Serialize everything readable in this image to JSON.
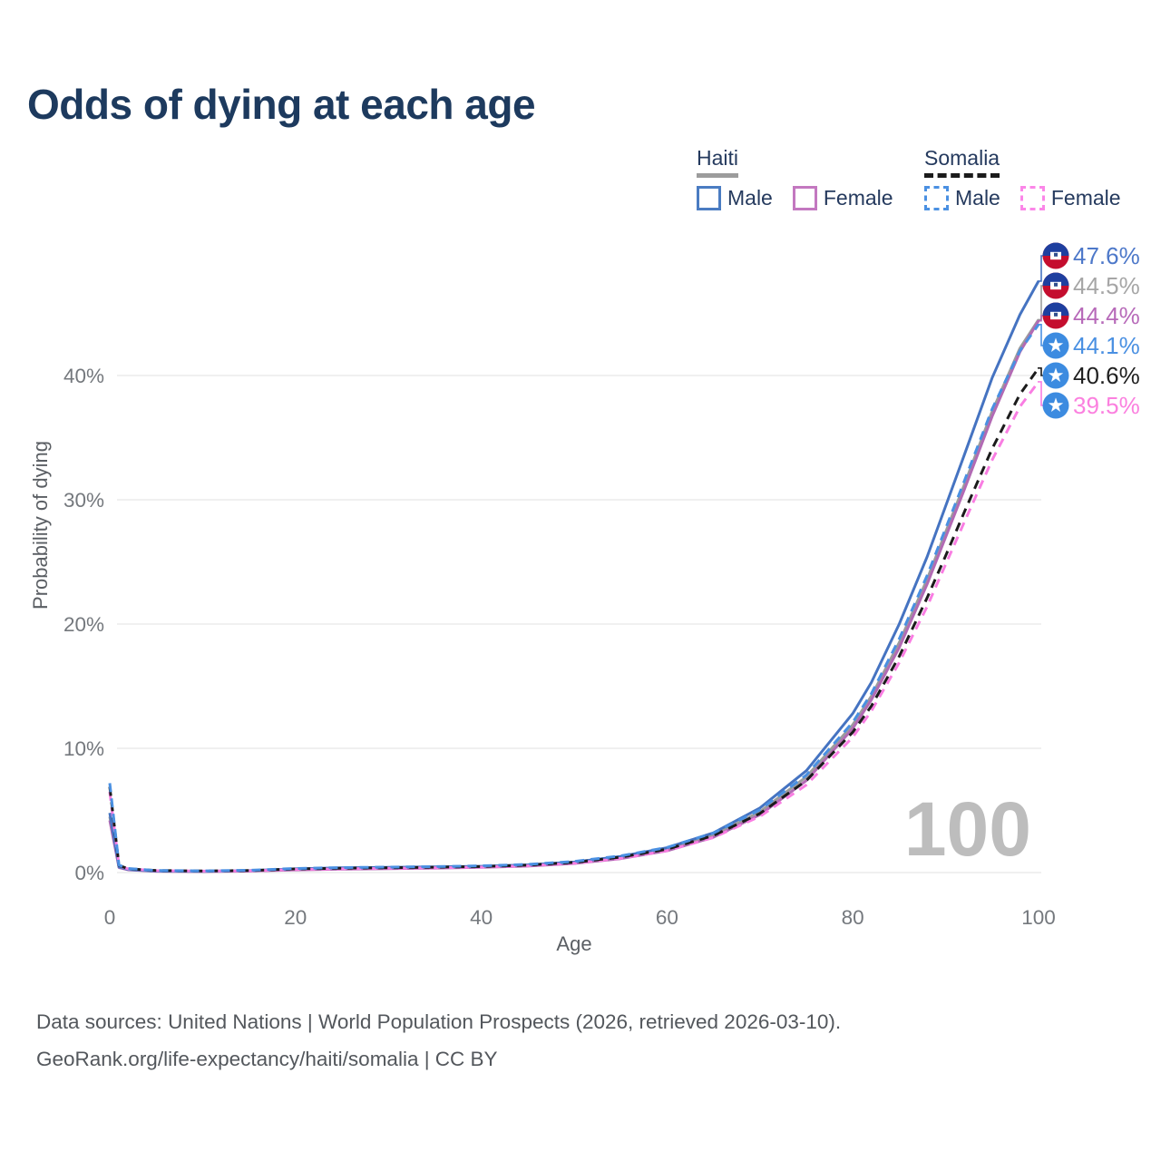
{
  "title": "Odds of dying at each age",
  "legend": {
    "groups": [
      {
        "country": "Haiti",
        "line_style": "solid",
        "underline_color": "#9c9c9c",
        "items": [
          {
            "label": "Male",
            "color": "#4a7cc2",
            "style": "solid"
          },
          {
            "label": "Female",
            "color": "#c378c0",
            "style": "solid"
          }
        ]
      },
      {
        "country": "Somalia",
        "line_style": "dashed",
        "underline_color": "#1b1b1b",
        "items": [
          {
            "label": "Male",
            "color": "#4a90e2",
            "style": "dashed"
          },
          {
            "label": "Female",
            "color": "#fb86e8",
            "style": "dashed"
          }
        ]
      }
    ]
  },
  "chart_data": {
    "type": "line",
    "title": "Odds of dying at each age",
    "xlabel": "Age",
    "ylabel": "Probability of dying",
    "xlim": [
      0,
      100
    ],
    "ylim": [
      0,
      48
    ],
    "x_ticks": [
      0,
      20,
      40,
      60,
      80,
      100
    ],
    "y_ticks": [
      "0%",
      "10%",
      "20%",
      "30%",
      "40%"
    ],
    "y_tick_values": [
      0,
      10,
      20,
      30,
      40
    ],
    "grid": "horizontal",
    "legend_position": "top-right",
    "watermark": "100",
    "x": [
      0,
      1,
      2,
      5,
      10,
      15,
      20,
      25,
      30,
      35,
      40,
      45,
      50,
      55,
      60,
      65,
      70,
      75,
      80,
      82,
      85,
      88,
      90,
      92,
      95,
      98,
      100
    ],
    "series": [
      {
        "name": "Haiti",
        "country": "Haiti",
        "group": "All",
        "color": "#9c9c9c",
        "label_color": "#a6a6a6",
        "dash": "solid",
        "flag": "haiti",
        "end_value": 44.5,
        "end_label": "44.5%",
        "values": [
          4.5,
          0.42,
          0.24,
          0.11,
          0.09,
          0.13,
          0.26,
          0.33,
          0.37,
          0.41,
          0.46,
          0.57,
          0.79,
          1.2,
          1.86,
          3.0,
          4.9,
          7.7,
          11.9,
          14.2,
          18.5,
          23.6,
          27.4,
          31.2,
          37.1,
          42.2,
          44.5
        ]
      },
      {
        "name": "Haiti Female",
        "country": "Haiti",
        "group": "Female",
        "color": "#b26ab4",
        "label_color": "#b76ab9",
        "dash": "solid",
        "flag": "haiti",
        "end_value": 44.4,
        "end_label": "44.4%",
        "values": [
          4.2,
          0.4,
          0.22,
          0.1,
          0.08,
          0.12,
          0.21,
          0.27,
          0.31,
          0.36,
          0.42,
          0.52,
          0.73,
          1.12,
          1.75,
          2.85,
          4.65,
          7.4,
          11.6,
          13.9,
          18.1,
          23.2,
          27.0,
          30.8,
          36.7,
          41.9,
          44.4
        ]
      },
      {
        "name": "Haiti Male",
        "country": "Haiti",
        "group": "Male",
        "color": "#4573c1",
        "label_color": "#4d78c9",
        "dash": "solid",
        "flag": "haiti",
        "end_value": 47.6,
        "end_label": "47.6%",
        "values": [
          4.8,
          0.45,
          0.25,
          0.12,
          0.1,
          0.15,
          0.3,
          0.38,
          0.42,
          0.45,
          0.5,
          0.62,
          0.85,
          1.3,
          2.0,
          3.2,
          5.2,
          8.2,
          12.8,
          15.3,
          20.0,
          25.4,
          29.5,
          33.6,
          39.8,
          44.9,
          47.6
        ]
      },
      {
        "name": "Somalia Female",
        "country": "Somalia",
        "group": "Female",
        "color": "#f97de2",
        "label_color": "#fb80df",
        "dash": "dashed",
        "flag": "somalia",
        "end_value": 39.5,
        "end_label": "39.5%",
        "values": [
          6.5,
          0.54,
          0.29,
          0.15,
          0.12,
          0.14,
          0.25,
          0.3,
          0.34,
          0.38,
          0.44,
          0.55,
          0.75,
          1.14,
          1.76,
          2.82,
          4.52,
          7.05,
          10.9,
          13.0,
          16.9,
          21.4,
          24.8,
          28.2,
          33.2,
          37.5,
          39.5
        ]
      },
      {
        "name": "Somalia",
        "country": "Somalia",
        "group": "All",
        "color": "#1b1b1b",
        "label_color": "#1f1f1f",
        "dash": "dashed",
        "flag": "somalia",
        "end_value": 40.6,
        "end_label": "40.6%",
        "values": [
          6.9,
          0.57,
          0.31,
          0.16,
          0.13,
          0.16,
          0.29,
          0.35,
          0.39,
          0.43,
          0.49,
          0.6,
          0.82,
          1.24,
          1.88,
          2.98,
          4.75,
          7.4,
          11.3,
          13.4,
          17.4,
          22.1,
          25.5,
          29.0,
          34.1,
          38.5,
          40.6
        ]
      },
      {
        "name": "Somalia Male",
        "country": "Somalia",
        "group": "Male",
        "color": "#4a90e2",
        "label_color": "#4a90e2",
        "dash": "dashed",
        "flag": "somalia",
        "end_value": 44.1,
        "end_label": "44.1%",
        "values": [
          7.2,
          0.6,
          0.33,
          0.17,
          0.14,
          0.18,
          0.33,
          0.4,
          0.44,
          0.48,
          0.54,
          0.66,
          0.9,
          1.34,
          2.02,
          3.18,
          5.05,
          7.85,
          12.1,
          14.4,
          18.8,
          23.9,
          27.7,
          31.5,
          37.3,
          42.0,
          44.1
        ]
      }
    ]
  },
  "flag_colors": {
    "haiti_blue": "#1e3f9f",
    "haiti_red": "#c40d2e",
    "somalia_blue": "#3c8be0"
  },
  "footer": {
    "line1": "Data sources: United Nations | World Population Prospects (2026, retrieved 2026-03-10).",
    "line2": "GeoRank.org/life-expectancy/haiti/somalia | CC BY"
  }
}
